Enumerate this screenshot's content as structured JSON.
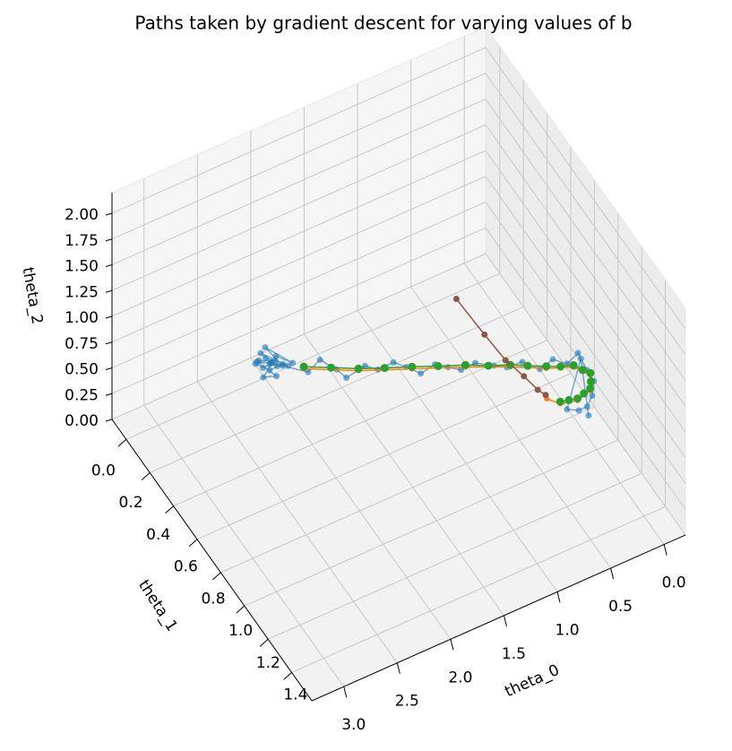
{
  "chart_data": {
    "type": "scatter3d",
    "title": "Paths taken by gradient descent for varying values of b",
    "xlabel": "theta_0",
    "ylabel": "theta_1",
    "zlabel": "theta_2",
    "xlim": [
      -0.2,
      3.3
    ],
    "ylim": [
      -0.12,
      1.57
    ],
    "zlim": [
      0,
      2.2
    ],
    "xticks": [
      {
        "value": 0,
        "label": "0.0"
      },
      0.5,
      {
        "value": 1,
        "label": "1.0"
      },
      1.5,
      {
        "value": 2,
        "label": "2.0"
      },
      2.5,
      {
        "value": 3,
        "label": "3.0"
      }
    ],
    "yticks": [
      {
        "value": 0,
        "label": "0.0"
      },
      0.2,
      0.4,
      0.6,
      0.8,
      {
        "value": 1,
        "label": "1.0"
      },
      1.2,
      1.4
    ],
    "zticks": [
      {
        "value": 0,
        "label": "0.00"
      },
      0.25,
      {
        "value": 0.5,
        "label": "0.50"
      },
      0.75,
      {
        "value": 1,
        "label": "1.00"
      },
      1.25,
      {
        "value": 1.5,
        "label": "1.50"
      },
      1.75,
      {
        "value": 2,
        "label": "2.00"
      }
    ],
    "grid": true,
    "series": [
      {
        "color": "#1f77b4",
        "line": true,
        "alpha": 0.6,
        "marker_size": 3.5,
        "x": [
          2.21,
          2.25,
          2.18,
          2.28,
          2.15,
          2.23,
          2.3,
          2.2,
          2.12,
          2.26,
          2.17,
          2.24,
          2.08,
          2.32,
          2.19,
          2.27,
          2.14,
          2.05,
          2.22,
          2.1,
          1.95,
          1.85,
          1.75,
          1.68,
          1.55,
          1.45,
          1.35,
          1.25,
          1.15,
          1.05,
          0.95,
          0.85,
          0.75,
          0.62,
          0.52,
          0.42,
          0.3,
          0.2,
          0.1,
          0.02,
          -0.02,
          -0.04,
          0.02,
          0.1,
          0.2,
          0.3,
          0.06,
          0.12
        ],
        "y": [
          0.23,
          0.21,
          0.25,
          0.2,
          0.24,
          0.26,
          0.19,
          0.22,
          0.26,
          0.24,
          0.21,
          0.18,
          0.27,
          0.22,
          0.27,
          0.23,
          0.22,
          0.28,
          0.2,
          0.24,
          0.32,
          0.33,
          0.38,
          0.4,
          0.44,
          0.46,
          0.5,
          0.52,
          0.55,
          0.58,
          0.6,
          0.62,
          0.65,
          0.69,
          0.71,
          0.75,
          0.79,
          0.81,
          0.84,
          0.86,
          0.9,
          0.94,
          0.98,
          1.01,
          1.03,
          1.02,
          0.92,
          1.04
        ],
        "z": [
          0.6,
          0.55,
          0.65,
          0.62,
          0.57,
          0.68,
          0.58,
          0.52,
          0.61,
          0.7,
          0.56,
          0.64,
          0.59,
          0.66,
          0.54,
          0.5,
          0.63,
          0.62,
          0.72,
          0.55,
          0.55,
          0.64,
          0.58,
          0.5,
          0.62,
          0.57,
          0.66,
          0.6,
          0.54,
          0.63,
          0.59,
          0.55,
          0.62,
          0.6,
          0.57,
          0.64,
          0.58,
          0.66,
          0.62,
          0.72,
          0.6,
          0.55,
          0.5,
          0.48,
          0.52,
          0.56,
          0.78,
          0.45
        ]
      },
      {
        "color": "#ff7f0e",
        "line": true,
        "alpha": 1,
        "marker_size": 3,
        "x": [
          1.98,
          1.6,
          1.21,
          0.82,
          0.5,
          0.25,
          0.05,
          -0.03,
          0.05,
          0.19,
          0.33,
          0.4
        ],
        "y": [
          0.31,
          0.43,
          0.53,
          0.63,
          0.72,
          0.8,
          0.85,
          0.92,
          0.99,
          1.01,
          0.99,
          0.94
        ],
        "z": [
          0.58,
          0.58,
          0.58,
          0.58,
          0.58,
          0.58,
          0.58,
          0.58,
          0.58,
          0.58,
          0.58,
          0.58
        ]
      },
      {
        "color": "#2ca02c",
        "line": true,
        "alpha": 1,
        "marker_size": 4.5,
        "x": [
          1.98,
          1.79,
          1.6,
          1.41,
          1.21,
          1.02,
          0.82,
          0.66,
          0.5,
          0.38,
          0.25,
          0.15,
          0.05,
          0.01,
          -0.03,
          0.01,
          0.05,
          0.12,
          0.19,
          0.26,
          0.33
        ],
        "y": [
          0.31,
          0.37,
          0.43,
          0.48,
          0.53,
          0.58,
          0.63,
          0.68,
          0.72,
          0.76,
          0.8,
          0.83,
          0.85,
          0.89,
          0.92,
          0.96,
          0.99,
          1.0,
          1.01,
          1.0,
          0.99
        ],
        "z": [
          0.6,
          0.6,
          0.6,
          0.6,
          0.6,
          0.6,
          0.6,
          0.6,
          0.6,
          0.6,
          0.6,
          0.6,
          0.6,
          0.6,
          0.6,
          0.6,
          0.6,
          0.6,
          0.6,
          0.6,
          0.6
        ]
      },
      {
        "color": "#8c564b",
        "line": true,
        "alpha": 1,
        "marker_size": 3.5,
        "x": [
          0.55,
          0.53,
          0.51,
          0.46,
          0.43,
          0.4
        ],
        "y": [
          0.31,
          0.53,
          0.69,
          0.8,
          0.89,
          0.93
        ],
        "z": [
          0.6,
          0.6,
          0.6,
          0.6,
          0.6,
          0.6
        ]
      }
    ]
  }
}
